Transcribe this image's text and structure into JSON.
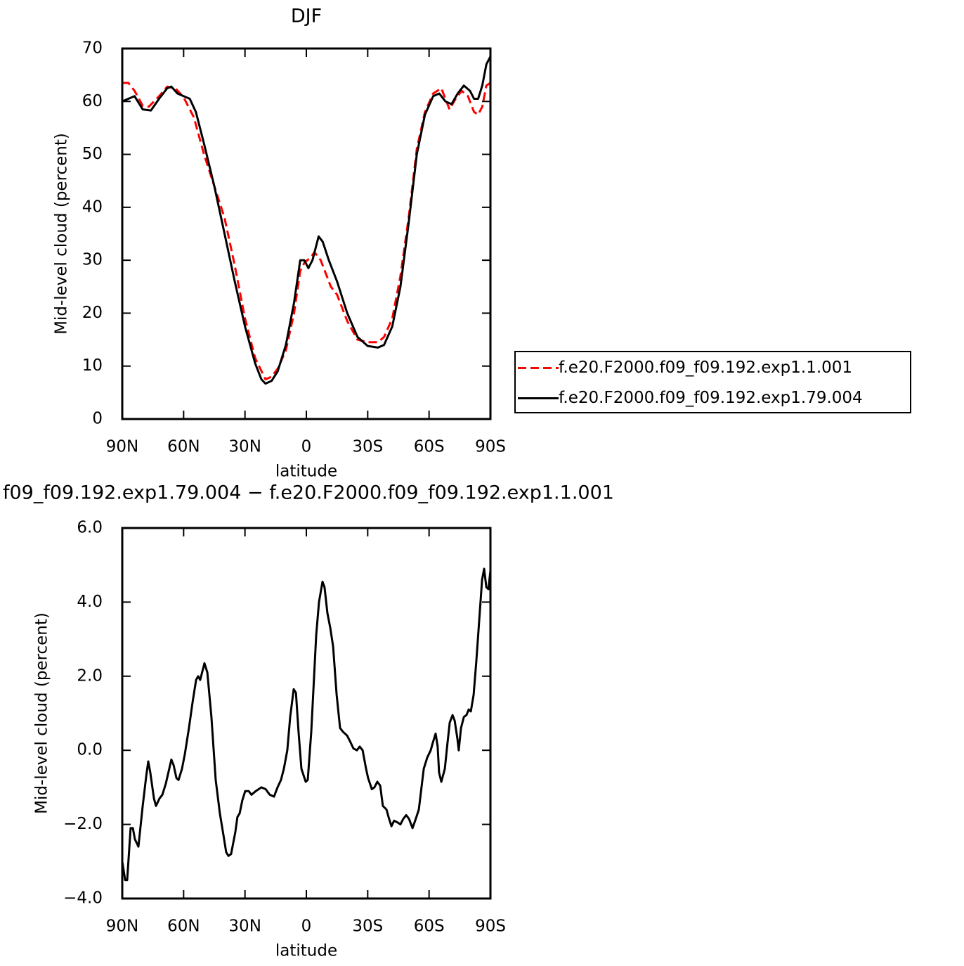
{
  "chart_data": [
    {
      "type": "line",
      "title": "DJF",
      "x_label": "latitude",
      "y_label": "Mid-level cloud (percent)",
      "xlim": [
        90,
        -90
      ],
      "xticks": [
        {
          "value": 90,
          "label": "90N"
        },
        {
          "value": 60,
          "label": "60N"
        },
        {
          "value": 30,
          "label": "30N"
        },
        0,
        {
          "value": -30,
          "label": "30S"
        },
        {
          "value": -60,
          "label": "60S"
        },
        {
          "value": -90,
          "label": "90S"
        }
      ],
      "ylim": [
        0,
        70
      ],
      "yticks": [
        0,
        10,
        20,
        30,
        40,
        50,
        60,
        70
      ],
      "legend": "right",
      "series": [
        {
          "name": "f.e20.F2000.f09_f09.192.exp1.1.001",
          "color": "#ff0000",
          "dash": true,
          "x": [
            90,
            87,
            84,
            80,
            77,
            72,
            68,
            64,
            60,
            55,
            50,
            45,
            40,
            35,
            30,
            25,
            20,
            17,
            14,
            10,
            6,
            3,
            1,
            -2,
            -4,
            -7,
            -10,
            -12,
            -15,
            -20,
            -25,
            -30,
            -35,
            -38,
            -42,
            -46,
            -50,
            -54,
            -58,
            -62,
            -66,
            -70,
            -73,
            -76,
            -79,
            -82,
            -84,
            -86,
            -88,
            -90
          ],
          "values": [
            63.5,
            63.5,
            62,
            59.2,
            59,
            61,
            62.8,
            62.5,
            60.8,
            57,
            50,
            44,
            38,
            29,
            19,
            11.5,
            7.5,
            8,
            9.5,
            13,
            20,
            28,
            29.5,
            30.5,
            31.5,
            30,
            27,
            25,
            23.5,
            18.5,
            15,
            14.5,
            14.5,
            15.5,
            19,
            27,
            38,
            51,
            58,
            61.5,
            62.5,
            58.5,
            60.5,
            62,
            61,
            58,
            57.5,
            59,
            63,
            63.5
          ]
        },
        {
          "name": "f.e20.F2000.f09_f09.192.exp1.79.004",
          "color": "#000000",
          "dash": false,
          "x": [
            90,
            87,
            84,
            80,
            76,
            72,
            68,
            66,
            63,
            60,
            57,
            54,
            50,
            45,
            40,
            35,
            30,
            25,
            22,
            20,
            17,
            14,
            10,
            6,
            3,
            1,
            -1,
            -3,
            -6,
            -8,
            -11,
            -15,
            -20,
            -25,
            -30,
            -35,
            -38,
            -42,
            -46,
            -50,
            -54,
            -58,
            -62,
            -65,
            -68,
            -71,
            -74,
            -77,
            -80,
            -82,
            -84,
            -86,
            -88,
            -90
          ],
          "values": [
            60,
            60.5,
            61,
            58.5,
            58.3,
            60.5,
            62.5,
            62.8,
            61.5,
            61,
            60.5,
            58,
            52,
            44,
            35,
            26,
            17.5,
            10.5,
            7.5,
            6.7,
            7.2,
            9,
            14,
            22,
            30,
            30,
            28.5,
            30,
            34.5,
            33.5,
            30,
            26,
            20,
            15.5,
            13.8,
            13.5,
            14,
            17.5,
            25,
            37,
            50,
            57.5,
            61,
            61.5,
            60,
            59.5,
            61.5,
            63,
            62,
            60.5,
            60.5,
            63,
            67,
            68.5
          ]
        }
      ]
    },
    {
      "type": "line",
      "title": "f09_f09.192.exp1.79.004 − f.e20.F2000.f09_f09.192.exp1.1.001",
      "x_label": "latitude",
      "y_label": "Mid-level cloud (percent)",
      "xlim": [
        90,
        -90
      ],
      "xticks": [
        {
          "value": 90,
          "label": "90N"
        },
        {
          "value": 60,
          "label": "60N"
        },
        {
          "value": 30,
          "label": "30N"
        },
        0,
        {
          "value": -30,
          "label": "30S"
        },
        {
          "value": -60,
          "label": "60S"
        },
        {
          "value": -90,
          "label": "90S"
        }
      ],
      "ylim": [
        -4,
        6
      ],
      "yticks": [
        {
          "value": -4,
          "label": "−4.0"
        },
        {
          "value": -2,
          "label": "−2.0"
        },
        {
          "value": 0,
          "label": "0.0"
        },
        {
          "value": 2,
          "label": "2.0"
        },
        {
          "value": 4,
          "label": "4.0"
        },
        {
          "value": 6,
          "label": "6.0"
        }
      ],
      "color": "#000000",
      "x": [
        90,
        88.6,
        87.6,
        85.9,
        84.8,
        83.8,
        82.1,
        80.0,
        78.3,
        77.3,
        76.3,
        74.5,
        73.5,
        71.8,
        70.4,
        68.7,
        66.0,
        64.9,
        63.5,
        62.5,
        60.8,
        59.4,
        57.4,
        55.6,
        53.9,
        52.9,
        51.9,
        49.8,
        48.4,
        46.4,
        44.3,
        42.3,
        40.5,
        39.2,
        38.1,
        36.8,
        34.7,
        33.7,
        32.6,
        31.3,
        29.9,
        28.2,
        26.8,
        24.7,
        22.0,
        19.9,
        17.9,
        15.8,
        14.1,
        12.4,
        11.0,
        9.3,
        7.9,
        6.2,
        5.1,
        3.8,
        2.4,
        0.3,
        -0.7,
        -2.4,
        -4.8,
        -6.2,
        -7.9,
        -8.9,
        -10.3,
        -11.7,
        -13.1,
        -14.8,
        -16.5,
        -17.9,
        -19.9,
        -21.3,
        -23.0,
        -24.7,
        -26.1,
        -27.5,
        -29.2,
        -30.2,
        -32.0,
        -33.3,
        -34.7,
        -36.1,
        -37.4,
        -39.2,
        -40.2,
        -41.6,
        -42.9,
        -44.7,
        -46.0,
        -47.4,
        -48.8,
        -50.2,
        -51.9,
        -53.2,
        -55.0,
        -56.3,
        -57.4,
        -59.1,
        -60.8,
        -61.8,
        -63.2,
        -64.2,
        -64.9,
        -66.0,
        -67.7,
        -69.0,
        -70.1,
        -71.5,
        -72.5,
        -73.9,
        -74.5,
        -75.6,
        -77.0,
        -78.3,
        -79.4,
        -80.4,
        -81.8,
        -83.1,
        -84.5,
        -85.9,
        -86.9,
        -88.0,
        -89.0,
        -90.0
      ],
      "values": [
        -3.0,
        -3.5,
        -3.5,
        -2.1,
        -2.1,
        -2.4,
        -2.6,
        -1.5,
        -0.7,
        -0.3,
        -0.6,
        -1.3,
        -1.5,
        -1.3,
        -1.2,
        -0.9,
        -0.25,
        -0.4,
        -0.75,
        -0.8,
        -0.5,
        -0.1,
        0.6,
        1.3,
        1.9,
        2.0,
        1.9,
        2.35,
        2.1,
        0.9,
        -0.8,
        -1.7,
        -2.3,
        -2.75,
        -2.85,
        -2.8,
        -2.2,
        -1.8,
        -1.7,
        -1.35,
        -1.1,
        -1.1,
        -1.2,
        -1.1,
        -1.0,
        -1.05,
        -1.2,
        -1.25,
        -1.0,
        -0.8,
        -0.5,
        0.0,
        0.9,
        1.65,
        1.55,
        0.5,
        -0.5,
        -0.85,
        -0.8,
        0.5,
        3.1,
        4.0,
        4.55,
        4.4,
        3.7,
        3.3,
        2.8,
        1.5,
        0.6,
        0.5,
        0.4,
        0.25,
        0.05,
        0.0,
        0.1,
        0.0,
        -0.5,
        -0.75,
        -1.05,
        -1.0,
        -0.85,
        -0.95,
        -1.5,
        -1.6,
        -1.8,
        -2.05,
        -1.9,
        -1.95,
        -2.0,
        -1.85,
        -1.75,
        -1.85,
        -2.1,
        -1.9,
        -1.6,
        -1.0,
        -0.5,
        -0.2,
        0.0,
        0.2,
        0.45,
        0.1,
        -0.6,
        -0.85,
        -0.5,
        0.2,
        0.75,
        0.95,
        0.8,
        0.3,
        0.0,
        0.6,
        0.9,
        0.95,
        1.1,
        1.05,
        1.5,
        2.4,
        3.5,
        4.6,
        4.9,
        4.4,
        4.35,
        4.85
      ]
    }
  ]
}
